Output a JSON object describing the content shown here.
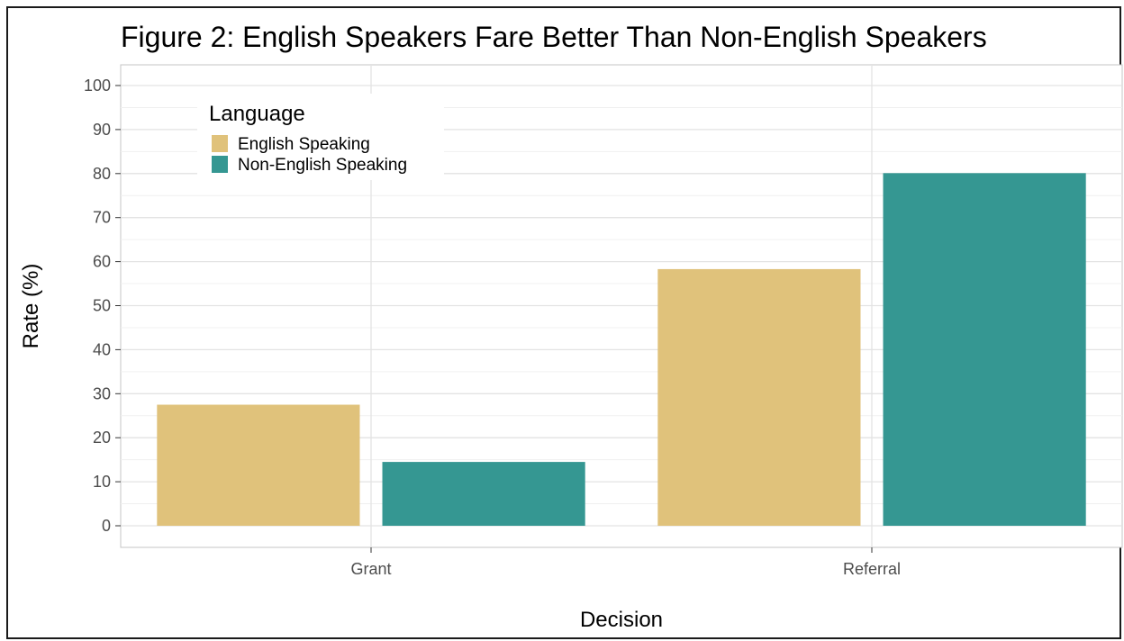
{
  "chart_data": {
    "type": "bar",
    "title": "Figure 2: English Speakers Fare Better Than Non-English Speakers",
    "xlabel": "Decision",
    "ylabel": "Rate (%)",
    "categories": [
      "Grant",
      "Referral"
    ],
    "series": [
      {
        "name": "English Speaking",
        "values": [
          27.5,
          58.3
        ],
        "color": "#E0C27B"
      },
      {
        "name": "Non-English Speaking",
        "values": [
          14.5,
          80.1
        ],
        "color": "#359792"
      }
    ],
    "ylim": [
      0,
      100
    ],
    "yticks": [
      0,
      10,
      20,
      30,
      40,
      50,
      60,
      70,
      80,
      90,
      100
    ],
    "legend": {
      "title": "Language",
      "position": "top-left inside"
    },
    "grid": true
  }
}
